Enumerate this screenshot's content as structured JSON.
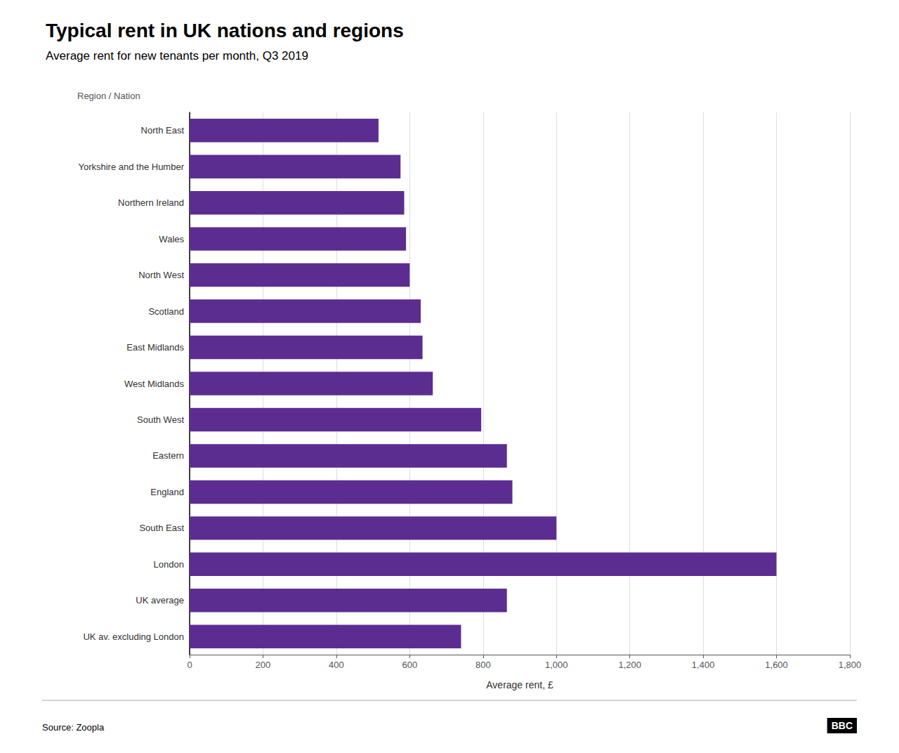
{
  "chart_data": {
    "type": "bar",
    "orientation": "horizontal",
    "title": "Typical rent in UK nations and regions",
    "subtitle": "Average rent for new tenants per month, Q3 2019",
    "ylabel": "Region / Nation",
    "xlabel": "Average rent, £",
    "annotations": [
      "Source: Zoopla",
      "BBC"
    ],
    "categories": [
      "North East",
      "Yorkshire and the Humber",
      "Northern Ireland",
      "Wales",
      "North West",
      "Scotland",
      "East Midlands",
      "West Midlands",
      "South West",
      "Eastern",
      "England",
      "South East",
      "London",
      "UK average",
      "UK av. excluding London"
    ],
    "values": [
      515,
      575,
      585,
      590,
      600,
      630,
      635,
      663,
      795,
      865,
      880,
      1000,
      1600,
      865,
      740
    ],
    "color": "#5c2d91",
    "xlim": [
      0,
      1800
    ],
    "xticks": [
      0,
      200,
      400,
      600,
      800,
      {
        "value": 1000,
        "label": "1,000"
      },
      {
        "value": 1200,
        "label": "1,200"
      },
      {
        "value": 1400,
        "label": "1,400"
      },
      {
        "value": 1600,
        "label": "1,600"
      },
      {
        "value": 1800,
        "label": "1,800"
      }
    ],
    "grid": true
  }
}
